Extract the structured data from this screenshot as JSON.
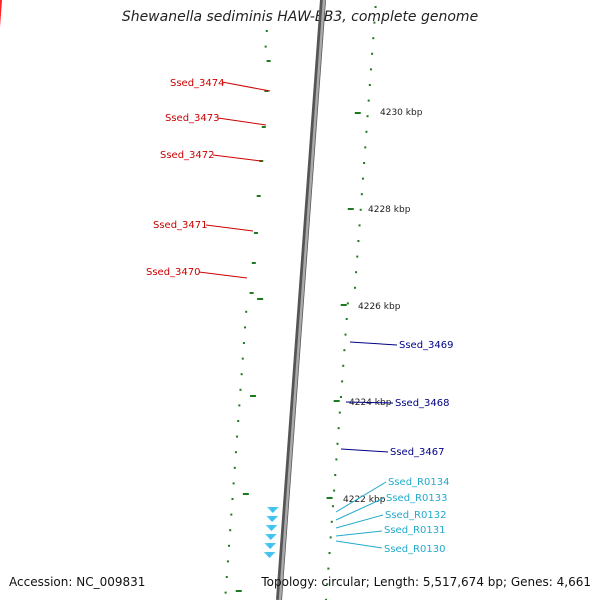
{
  "title": "Shewanella sediminis HAW-EB3, complete genome",
  "accession": "Accession: NC_009831",
  "summary": "Topology: circular; Length: 5,517,674 bp; Genes: 4,661",
  "colors": {
    "backbone": "#808080",
    "tick": "#1e7a1e",
    "cds_red": "#ff0000",
    "cds_blue": "#0000dd",
    "cds_pink": "#ee8080",
    "cds_cyan": "#33ddee",
    "trna": "#3bc0f0",
    "olive": "#6b8e23",
    "navy": "#3a3a8c",
    "gray": "#bbbbbb",
    "green": "#33cc33",
    "label_red": "#cc0000",
    "label_blue": "#000088",
    "label_cyan": "#22aacc"
  },
  "scale_labels": [
    "4230 kbp",
    "4228 kbp",
    "4226 kbp",
    "4224 kbp",
    "4222 kbp"
  ],
  "gene_labels": [
    {
      "id": "ssed-3474",
      "text": "Ssed_3474",
      "color": "label_red"
    },
    {
      "id": "ssed-3473",
      "text": "Ssed_3473",
      "color": "label_red"
    },
    {
      "id": "ssed-3472",
      "text": "Ssed_3472",
      "color": "label_red"
    },
    {
      "id": "ssed-3471",
      "text": "Ssed_3471",
      "color": "label_red"
    },
    {
      "id": "ssed-3470",
      "text": "Ssed_3470",
      "color": "label_red"
    },
    {
      "id": "ssed-3469",
      "text": "Ssed_3469",
      "color": "label_blue"
    },
    {
      "id": "ssed-3468",
      "text": "Ssed_3468",
      "color": "label_blue"
    },
    {
      "id": "ssed-3467",
      "text": "Ssed_3467",
      "color": "label_blue"
    },
    {
      "id": "ssed-r0134",
      "text": "Ssed_R0134",
      "color": "label_cyan"
    },
    {
      "id": "ssed-r0133",
      "text": "Ssed_R0133",
      "color": "label_cyan"
    },
    {
      "id": "ssed-r0132",
      "text": "Ssed_R0132",
      "color": "label_cyan"
    },
    {
      "id": "ssed-r0131",
      "text": "Ssed_R0131",
      "color": "label_cyan"
    },
    {
      "id": "ssed-r0130",
      "text": "Ssed_R0130",
      "color": "label_cyan"
    }
  ]
}
